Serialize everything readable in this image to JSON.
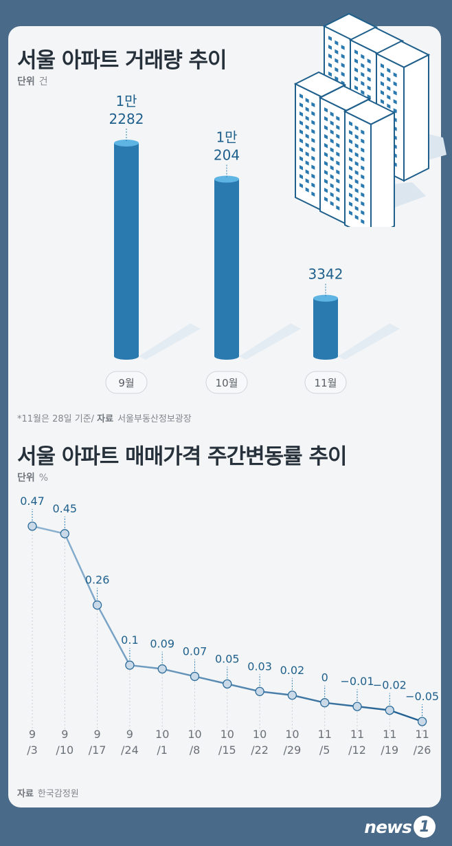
{
  "chart1": {
    "title": "서울 아파트 거래량 추이",
    "unit_label": "단위",
    "unit": "건",
    "footnote": "*11월은 28일 기준/",
    "source_label": "자료",
    "source": "서울부동산정보광장",
    "value_labels": [
      [
        "1만",
        "2282"
      ],
      [
        "1만",
        "204"
      ],
      [
        "",
        "3342"
      ]
    ]
  },
  "chart2": {
    "title": "서울 아파트 매매가격 주간변동률 추이",
    "unit_label": "단위",
    "unit": "%",
    "source_label": "자료",
    "source": "한국감정원",
    "tick_labels": [
      [
        "9",
        "/3"
      ],
      [
        "9",
        "/10"
      ],
      [
        "9",
        "/17"
      ],
      [
        "9",
        "/24"
      ],
      [
        "10",
        "/1"
      ],
      [
        "10",
        "/8"
      ],
      [
        "10",
        "/15"
      ],
      [
        "10",
        "/22"
      ],
      [
        "10",
        "/29"
      ],
      [
        "11",
        "/5"
      ],
      [
        "11",
        "/12"
      ],
      [
        "11",
        "/19"
      ],
      [
        "11",
        "/26"
      ]
    ],
    "value_labels": [
      "0.47",
      "0.45",
      "0.26",
      "0.1",
      "0.09",
      "0.07",
      "0.05",
      "0.03",
      "0.02",
      "0",
      "−0.01",
      "−0.02",
      "−0.05"
    ]
  },
  "chart_data": [
    {
      "type": "bar",
      "categories": [
        "9월",
        "10월",
        "11월"
      ],
      "values": [
        12282,
        10204,
        3342
      ],
      "title": "서울 아파트 거래량 추이",
      "ylabel": "건",
      "ylim": [
        0,
        13000
      ],
      "bar_color": "#2a7ab0"
    },
    {
      "type": "line",
      "x": [
        "9/3",
        "9/10",
        "9/17",
        "9/24",
        "10/1",
        "10/8",
        "10/15",
        "10/22",
        "10/29",
        "11/5",
        "11/12",
        "11/19",
        "11/26"
      ],
      "values": [
        0.47,
        0.45,
        0.26,
        0.1,
        0.09,
        0.07,
        0.05,
        0.03,
        0.02,
        0,
        -0.01,
        -0.02,
        -0.05
      ],
      "title": "서울 아파트 매매가격 주간변동률 추이",
      "ylabel": "%",
      "ylim": [
        -0.05,
        0.47
      ],
      "line_color_start": "#8fb4d3",
      "line_color_end": "#1f5e91"
    }
  ],
  "brand": {
    "word": "news",
    "num": "1"
  }
}
